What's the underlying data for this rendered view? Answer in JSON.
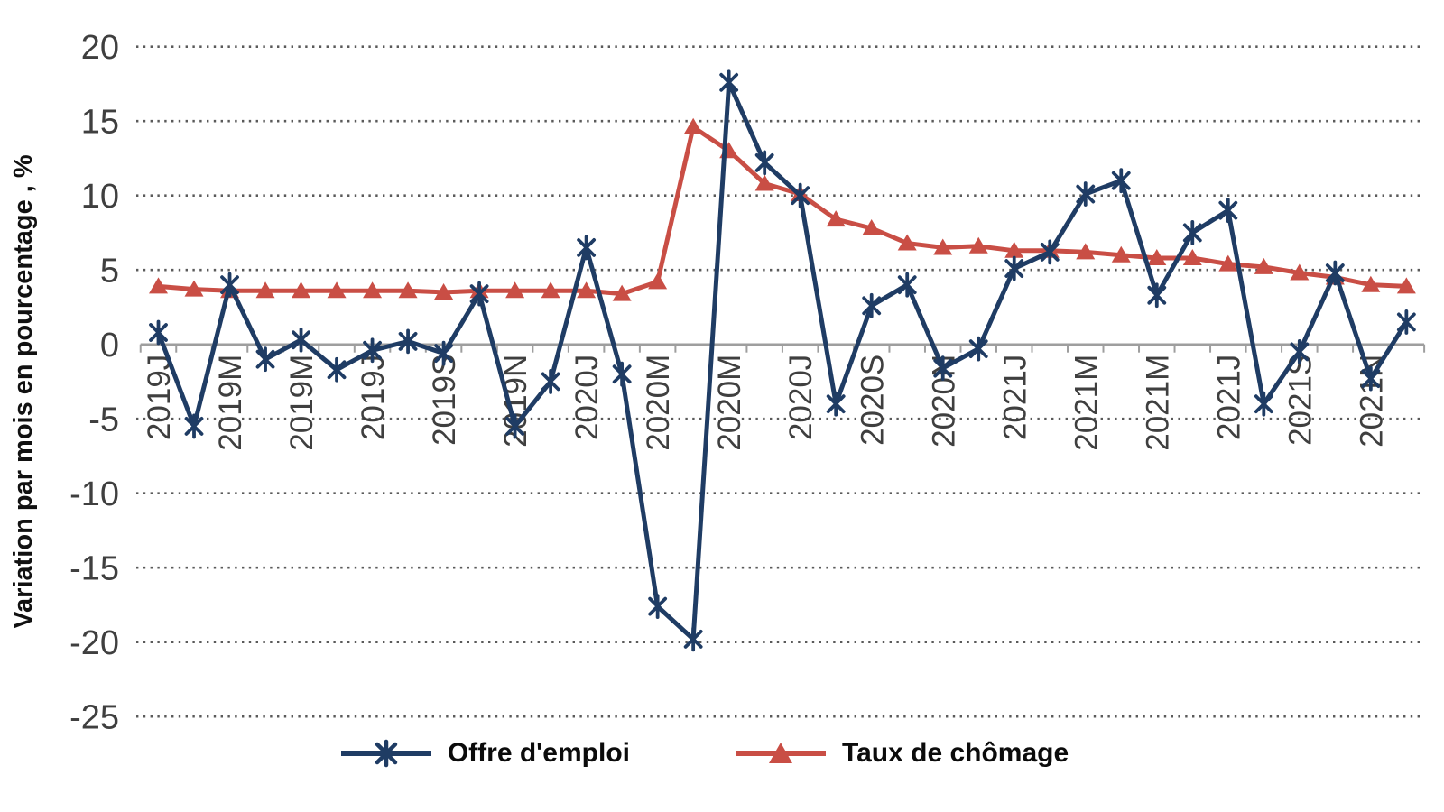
{
  "figure": {
    "background": "#ffffff"
  },
  "chart_data": {
    "type": "line",
    "title": "",
    "xlabel": "",
    "ylabel": "Variation par mois en pourcentage , %",
    "ylim": [
      -25,
      20
    ],
    "ytick_step": 5,
    "yticks": [
      20,
      15,
      10,
      5,
      0,
      -5,
      -10,
      -15,
      -20,
      -25
    ],
    "n_points": 36,
    "x_tick_labels": [
      "2019J",
      "2019M",
      "2019M",
      "2019J",
      "2019S",
      "2019N",
      "2020J",
      "2020M",
      "2020M",
      "2020J",
      "2020S",
      "2020N",
      "2021J",
      "2021M",
      "2021M",
      "2021J",
      "2021S",
      "2021N"
    ],
    "x_label_every": 2,
    "grid": "dotted-horizontal",
    "legend_position": "bottom-center",
    "series": [
      {
        "name": "Offre d'emploi",
        "color": "#1F3C64",
        "marker": "asterisk",
        "values": [
          0.8,
          -5.5,
          4.0,
          -1.0,
          0.3,
          -1.7,
          -0.4,
          0.2,
          -0.6,
          3.4,
          -5.5,
          -2.5,
          6.5,
          -2.0,
          -17.6,
          -19.8,
          17.6,
          12.2,
          10.0,
          -4.0,
          2.6,
          4.0,
          -1.6,
          -0.3,
          5.1,
          6.2,
          10.1,
          11.0,
          3.3,
          7.5,
          9.0,
          -4.0,
          -0.5,
          4.8,
          -2.3,
          1.5
        ]
      },
      {
        "name": "Taux de chômage",
        "color": "#C94E45",
        "marker": "triangle",
        "values": [
          3.9,
          3.7,
          3.6,
          3.6,
          3.6,
          3.6,
          3.6,
          3.6,
          3.5,
          3.6,
          3.6,
          3.6,
          3.6,
          3.4,
          4.2,
          14.6,
          13.0,
          10.8,
          10.1,
          8.4,
          7.8,
          6.8,
          6.5,
          6.6,
          6.3,
          6.3,
          6.2,
          6.0,
          5.8,
          5.8,
          5.4,
          5.2,
          4.8,
          4.5,
          4.0,
          3.9
        ]
      }
    ],
    "style": {
      "gridline_color": "#5a5a5a",
      "axis_line_color": "#9e9e9e",
      "tick_label_color": "#3f3f3f",
      "line_width": 5
    }
  }
}
